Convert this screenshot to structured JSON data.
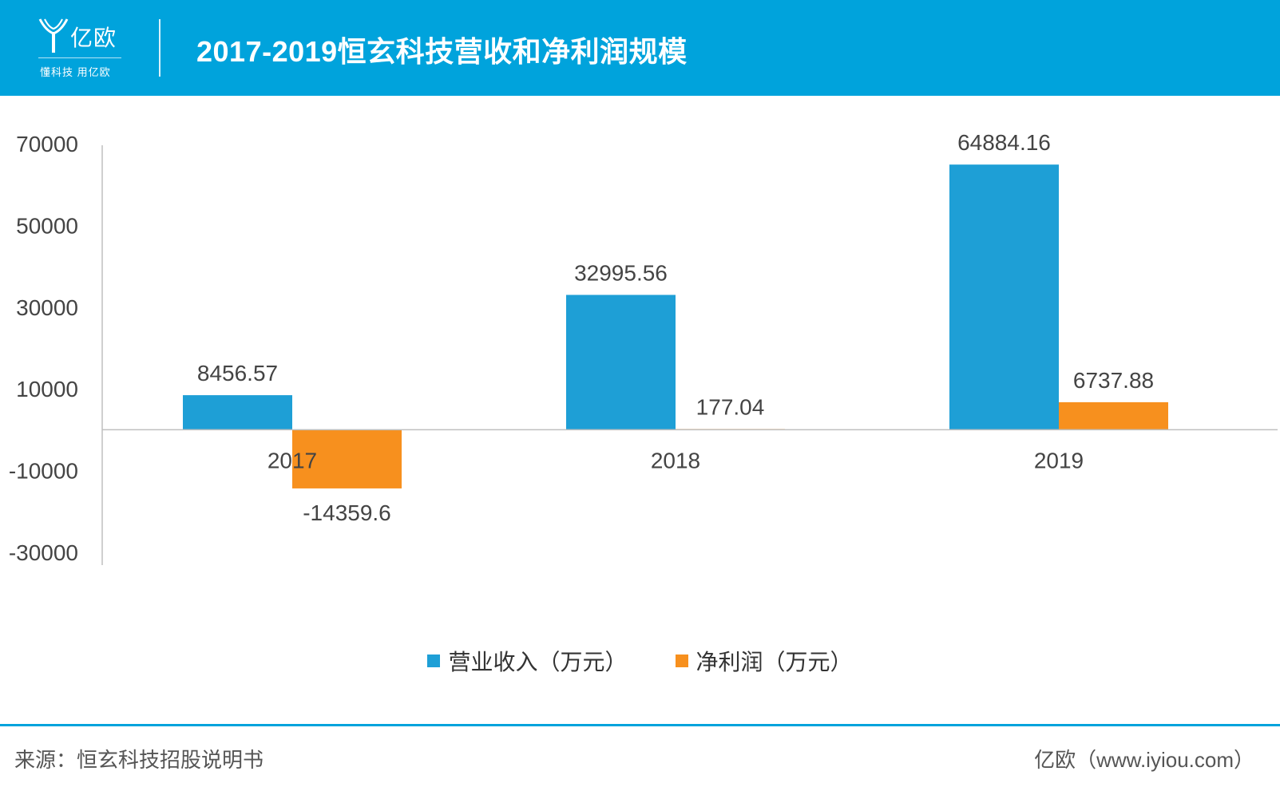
{
  "brand": {
    "name": "亿欧",
    "slogan": "懂科技 用亿欧",
    "color_primary": "#00a3dc"
  },
  "header": {
    "title": "2017-2019恒玄科技营收和净利润规模"
  },
  "chart_data": {
    "type": "bar",
    "categories": [
      "2017",
      "2018",
      "2019"
    ],
    "series": [
      {
        "name": "营业收入（万元）",
        "values": [
          8456.57,
          32995.56,
          64884.16
        ],
        "labels": [
          "8456.57",
          "32995.56",
          "64884.16"
        ],
        "color": "#1e9fd6"
      },
      {
        "name": "净利润（万元）",
        "values": [
          -14359.6,
          177.04,
          6737.88
        ],
        "labels": [
          "-14359.6",
          "177.04",
          "6737.88"
        ],
        "color": "#f7901e"
      }
    ],
    "y_ticks": [
      70000,
      50000,
      30000,
      10000,
      -10000,
      -30000
    ],
    "y_tick_labels": [
      "70000",
      "50000",
      "30000",
      "10000",
      "-10000",
      "-30000"
    ],
    "ylim": [
      -30000,
      70000
    ],
    "grid": false,
    "legend_position": "bottom"
  },
  "footer": {
    "source": "来源：恒玄科技招股说明书",
    "site": "亿欧（www.iyiou.com）"
  }
}
